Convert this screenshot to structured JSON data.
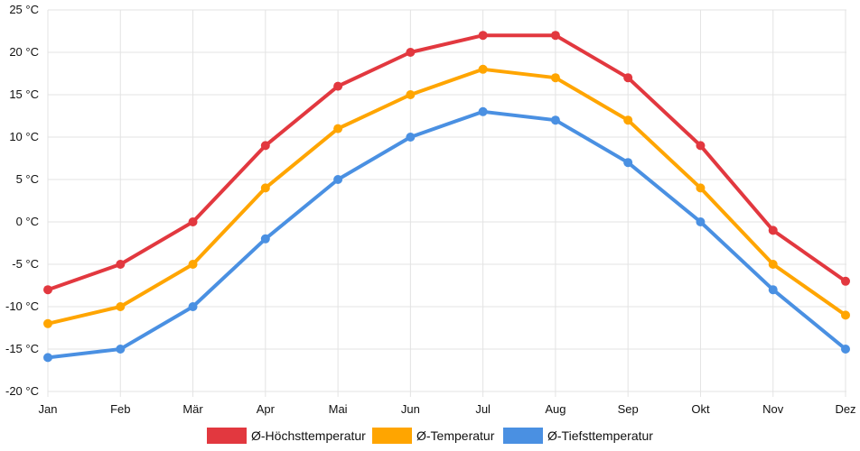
{
  "chart_data": {
    "type": "line",
    "categories": [
      "Jan",
      "Feb",
      "Mär",
      "Apr",
      "Mai",
      "Jun",
      "Jul",
      "Aug",
      "Sep",
      "Okt",
      "Nov",
      "Dez"
    ],
    "y_ticks": [
      25,
      20,
      15,
      10,
      5,
      0,
      -5,
      -10,
      -15,
      -20
    ],
    "y_unit": "°C",
    "ylim": [
      -20,
      25
    ],
    "grid": true,
    "legend_position": "bottom",
    "series": [
      {
        "name": "Ø-Höchsttemperatur",
        "color": "#e2383f",
        "values": [
          -8,
          -5,
          0,
          9,
          16,
          20,
          22,
          22,
          17,
          9,
          -1,
          -7
        ]
      },
      {
        "name": "Ø-Temperatur",
        "color": "#ffa500",
        "values": [
          -12,
          -10,
          -5,
          4,
          11,
          15,
          18,
          17,
          12,
          4,
          -5,
          -11
        ]
      },
      {
        "name": "Ø-Tiefsttemperatur",
        "color": "#4a90e2",
        "values": [
          -16,
          -15,
          -10,
          -2,
          5,
          10,
          13,
          12,
          7,
          0,
          -8,
          -15
        ]
      }
    ]
  }
}
